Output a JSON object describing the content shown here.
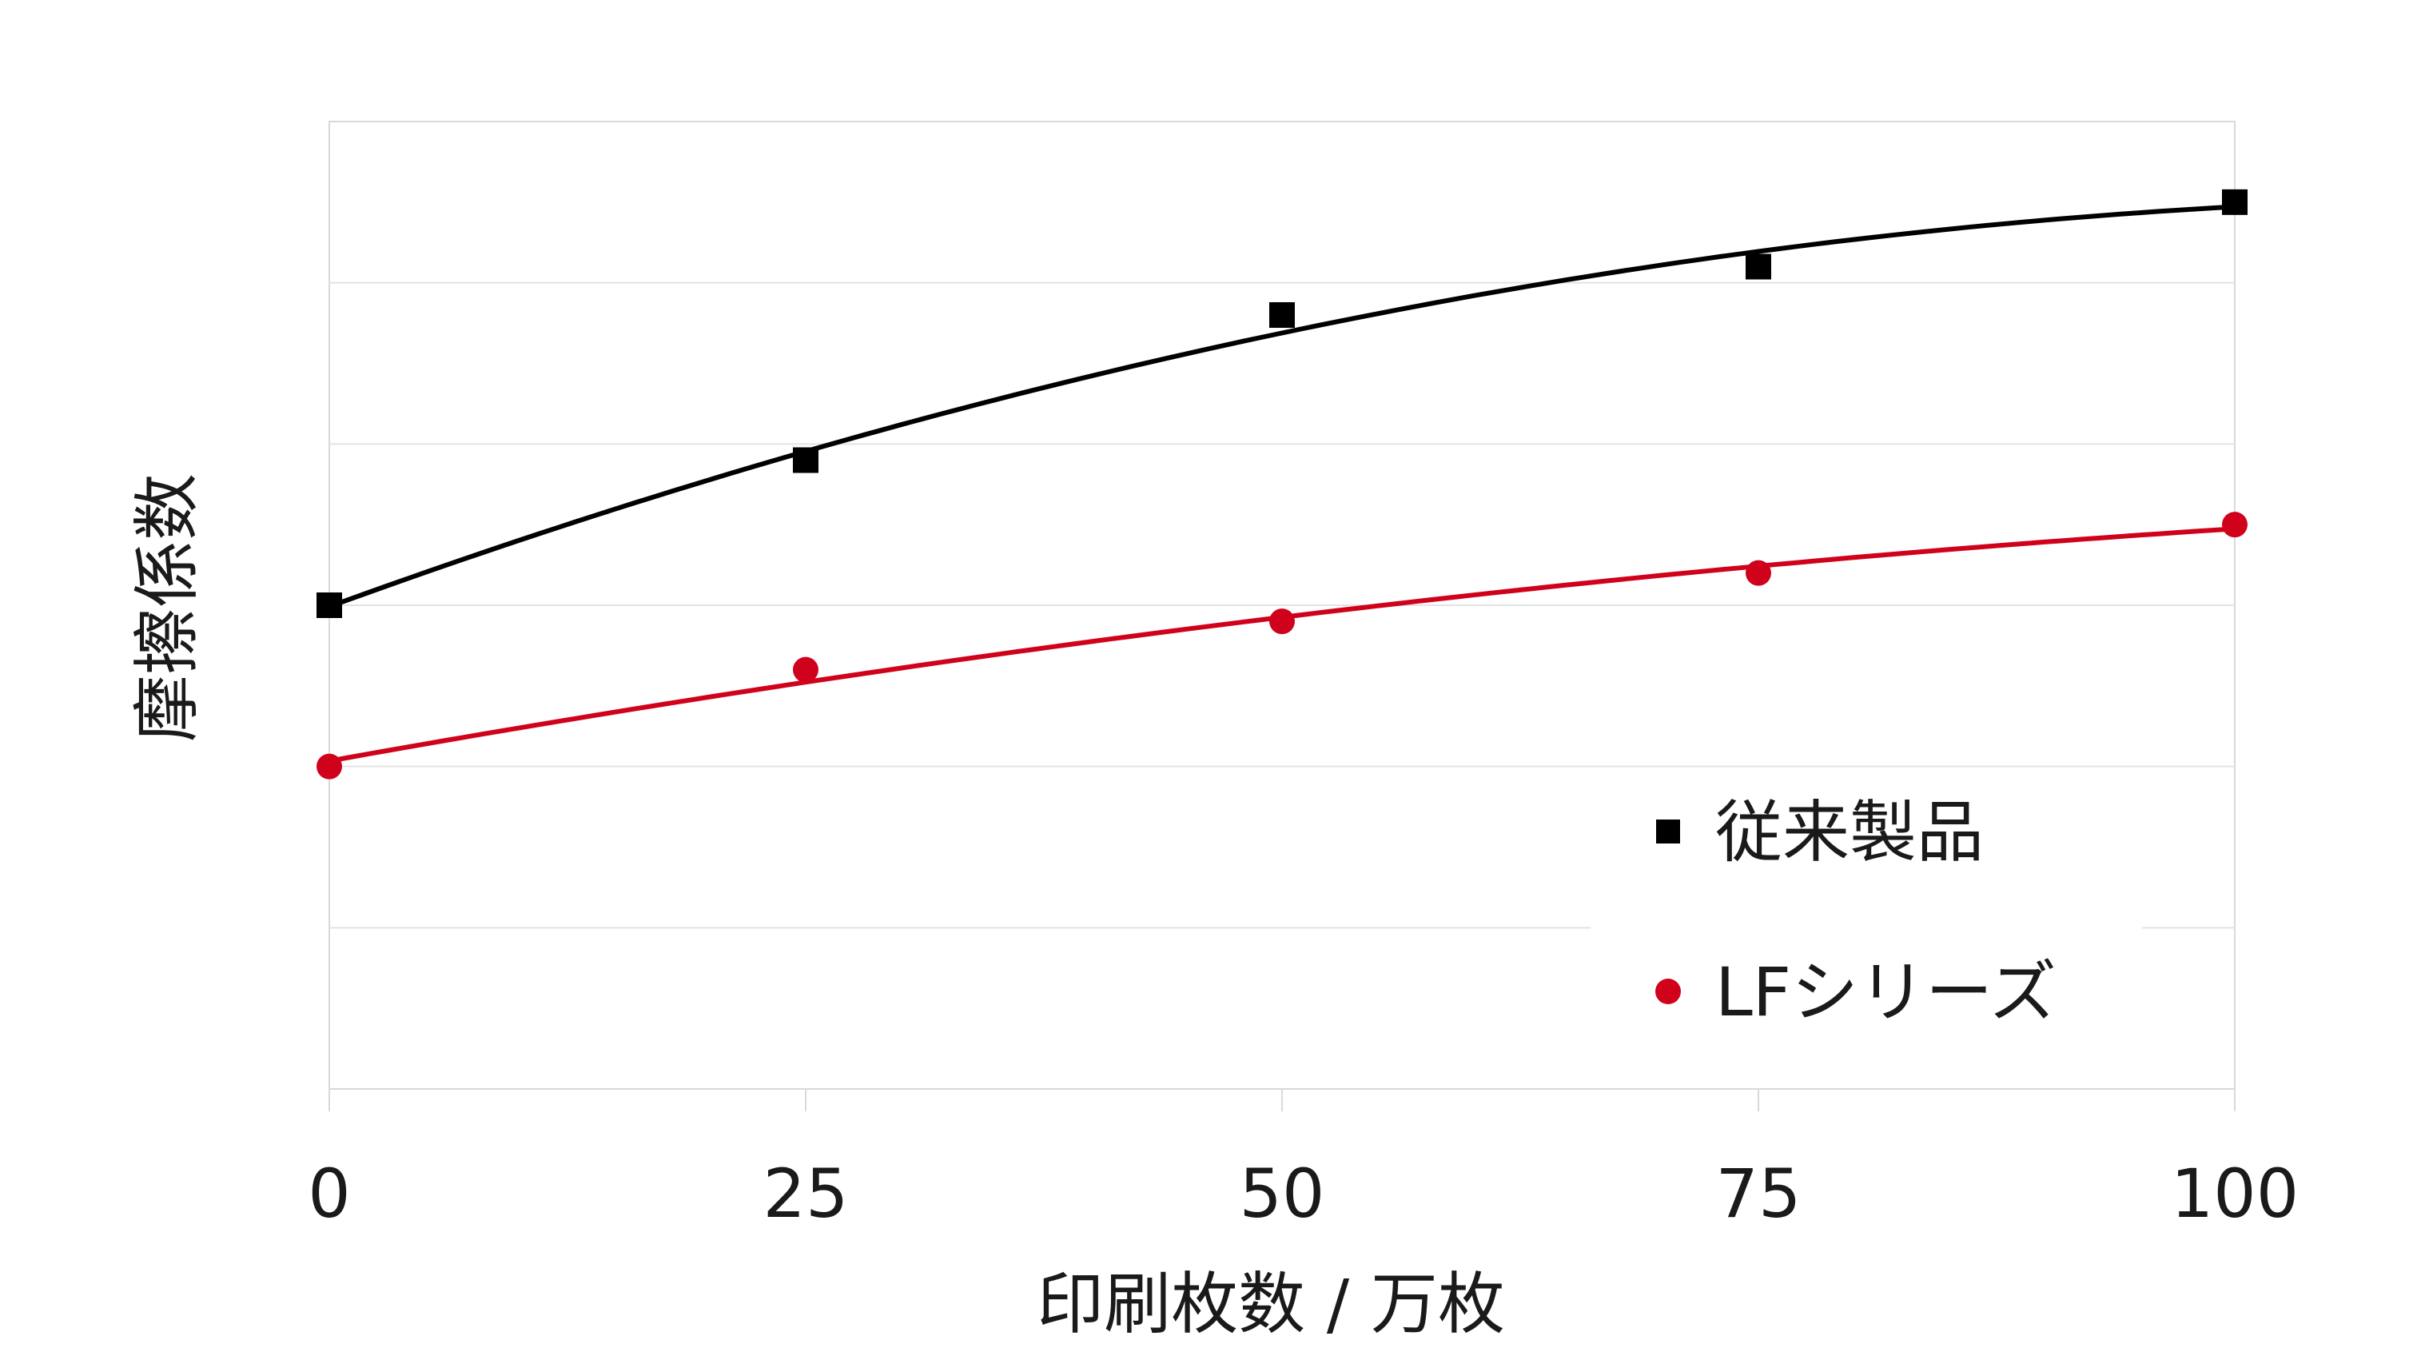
{
  "chart_data": {
    "type": "line",
    "xlabel": "印刷枚数 / 万枚",
    "ylabel": "摩擦係数",
    "x": [
      0,
      25,
      50,
      75,
      100
    ],
    "x_ticks": [
      "0",
      "25",
      "50",
      "75",
      "100"
    ],
    "xlim": [
      0,
      100
    ],
    "ylim": [
      0,
      6
    ],
    "y_tick_labels_shown": false,
    "grid": "horizontal",
    "legend_position": "lower-right",
    "series": [
      {
        "name": "従来製品",
        "marker": "square",
        "color": "#000000",
        "values": [
          3.0,
          3.9,
          4.8,
          5.1,
          5.5
        ],
        "trendline": "polynomial"
      },
      {
        "name": "LFシリーズ",
        "marker": "circle",
        "color": "#d0021b",
        "values": [
          2.0,
          2.6,
          2.9,
          3.2,
          3.5
        ],
        "trendline": "polynomial"
      }
    ]
  }
}
